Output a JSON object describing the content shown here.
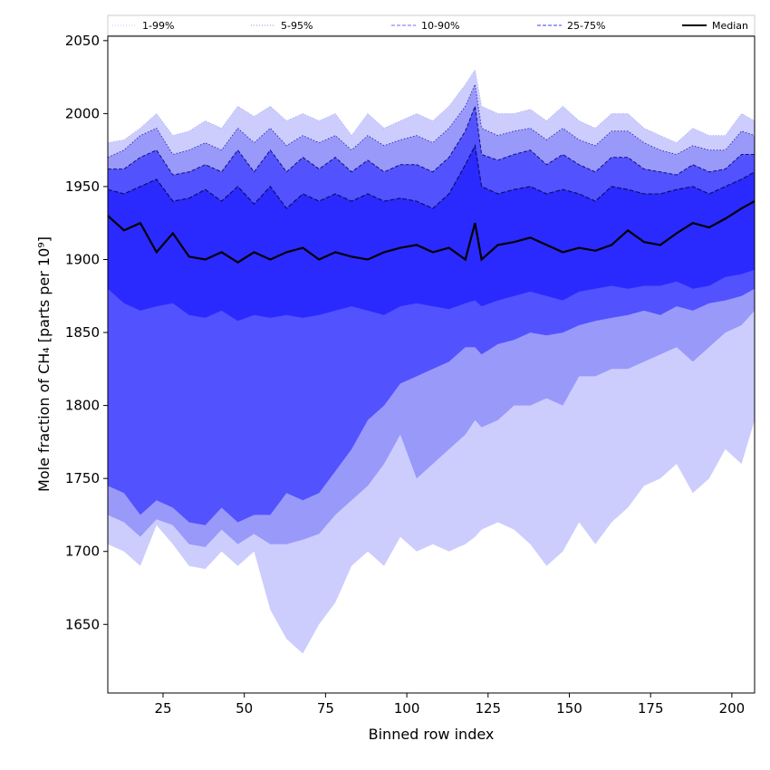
{
  "chart_data": {
    "type": "area",
    "title": "",
    "xlabel": "Binned row index",
    "ylabel": "Mole fraction of CH₄ [parts per 10⁹]",
    "xlim": [
      8,
      207
    ],
    "ylim": [
      1603,
      2053
    ],
    "xticks": [
      25,
      50,
      75,
      100,
      125,
      150,
      175,
      200
    ],
    "yticks": [
      1650,
      1700,
      1750,
      1800,
      1850,
      1900,
      1950,
      2000,
      2050
    ],
    "grid": false,
    "legend_position": "top",
    "legend": [
      {
        "key": "p1_99",
        "label": "1-99%",
        "style": "dotted",
        "color": "#c7c7f7"
      },
      {
        "key": "p5_95",
        "label": "5-95%",
        "style": "dotted",
        "color": "#8f8ff0"
      },
      {
        "key": "p10_90",
        "label": "10-90%",
        "style": "dashed",
        "color": "#6d6df2"
      },
      {
        "key": "p25_75",
        "label": "25-75%",
        "style": "dashed",
        "color": "#3c3cf0"
      },
      {
        "key": "median",
        "label": "Median",
        "style": "solid",
        "color": "#000000"
      }
    ],
    "x": [
      8,
      13,
      18,
      23,
      28,
      33,
      38,
      43,
      48,
      53,
      58,
      63,
      68,
      73,
      78,
      83,
      88,
      93,
      98,
      103,
      108,
      113,
      118,
      121,
      123,
      128,
      133,
      138,
      143,
      148,
      153,
      158,
      163,
      168,
      173,
      178,
      183,
      188,
      193,
      198,
      203,
      207
    ],
    "bands": [
      {
        "key": "p1_99",
        "color": "#cccdfd",
        "lower": [
          1705,
          1700,
          1690,
          1718,
          1705,
          1690,
          1688,
          1700,
          1690,
          1700,
          1660,
          1640,
          1630,
          1650,
          1665,
          1690,
          1700,
          1690,
          1710,
          1700,
          1705,
          1700,
          1705,
          1710,
          1715,
          1720,
          1715,
          1705,
          1690,
          1700,
          1720,
          1705,
          1720,
          1730,
          1745,
          1750,
          1760,
          1740,
          1750,
          1770,
          1760,
          1790
        ],
        "upper": [
          1980,
          1982,
          1990,
          2000,
          1985,
          1988,
          1995,
          1990,
          2005,
          1998,
          2005,
          1995,
          2000,
          1995,
          2000,
          1985,
          2000,
          1990,
          1995,
          2000,
          1995,
          2005,
          2020,
          2030,
          2005,
          2000,
          2000,
          2003,
          1995,
          2005,
          1995,
          1990,
          2000,
          2000,
          1990,
          1985,
          1980,
          1990,
          1985,
          1985,
          2000,
          1995
        ]
      },
      {
        "key": "p5_95",
        "color": "#9999fa",
        "lower": [
          1725,
          1720,
          1710,
          1722,
          1718,
          1705,
          1703,
          1715,
          1705,
          1712,
          1705,
          1705,
          1708,
          1712,
          1725,
          1735,
          1745,
          1760,
          1780,
          1750,
          1760,
          1770,
          1780,
          1790,
          1785,
          1790,
          1800,
          1800,
          1805,
          1800,
          1820,
          1820,
          1825,
          1825,
          1830,
          1835,
          1840,
          1830,
          1840,
          1850,
          1855,
          1865
        ]
      },
      {
        "key": "p10_90",
        "color": "#5252ff",
        "lower": [
          1745,
          1740,
          1725,
          1735,
          1730,
          1720,
          1718,
          1730,
          1720,
          1725,
          1725,
          1740,
          1735,
          1740,
          1755,
          1770,
          1790,
          1800,
          1815,
          1820,
          1825,
          1830,
          1840,
          1840,
          1835,
          1842,
          1845,
          1850,
          1848,
          1850,
          1855,
          1858,
          1860,
          1862,
          1865,
          1862,
          1868,
          1865,
          1870,
          1872,
          1875,
          1880
        ]
      },
      {
        "key": "p25_75",
        "color": "#2a2aff",
        "lower": [
          1880,
          1870,
          1865,
          1868,
          1870,
          1862,
          1860,
          1865,
          1858,
          1862,
          1860,
          1862,
          1860,
          1862,
          1865,
          1868,
          1865,
          1862,
          1868,
          1870,
          1868,
          1866,
          1870,
          1872,
          1868,
          1872,
          1875,
          1878,
          1875,
          1872,
          1878,
          1880,
          1882,
          1880,
          1882,
          1882,
          1885,
          1880,
          1882,
          1888,
          1890,
          1893
        ],
        "upper": [
          1948,
          1945,
          1950,
          1955,
          1940,
          1942,
          1948,
          1940,
          1950,
          1938,
          1950,
          1935,
          1945,
          1940,
          1945,
          1940,
          1945,
          1940,
          1942,
          1940,
          1935,
          1945,
          1965,
          1978,
          1950,
          1945,
          1948,
          1950,
          1945,
          1948,
          1945,
          1940,
          1950,
          1948,
          1945,
          1945,
          1948,
          1950,
          1945,
          1950,
          1955,
          1960
        ]
      }
    ],
    "upper_bounds": {
      "p5_95": [
        1970,
        1975,
        1985,
        1990,
        1972,
        1975,
        1980,
        1975,
        1990,
        1980,
        1990,
        1978,
        1985,
        1980,
        1985,
        1975,
        1985,
        1978,
        1982,
        1985,
        1980,
        1990,
        2005,
        2020,
        1990,
        1985,
        1988,
        1990,
        1982,
        1990,
        1982,
        1978,
        1988,
        1988,
        1980,
        1975,
        1972,
        1978,
        1975,
        1975,
        1988,
        1985
      ],
      "p10_90": [
        1962,
        1962,
        1970,
        1975,
        1958,
        1960,
        1965,
        1960,
        1975,
        1960,
        1975,
        1960,
        1970,
        1962,
        1970,
        1960,
        1968,
        1960,
        1965,
        1965,
        1960,
        1970,
        1988,
        2005,
        1972,
        1968,
        1972,
        1975,
        1965,
        1972,
        1965,
        1960,
        1970,
        1970,
        1962,
        1960,
        1958,
        1965,
        1960,
        1962,
        1972,
        1972
      ]
    },
    "median": [
      1930,
      1920,
      1925,
      1905,
      1918,
      1902,
      1900,
      1905,
      1898,
      1905,
      1900,
      1905,
      1908,
      1900,
      1905,
      1902,
      1900,
      1905,
      1908,
      1910,
      1905,
      1908,
      1900,
      1925,
      1900,
      1910,
      1912,
      1915,
      1910,
      1905,
      1908,
      1906,
      1910,
      1920,
      1912,
      1910,
      1918,
      1925,
      1922,
      1928,
      1935,
      1940
    ]
  }
}
